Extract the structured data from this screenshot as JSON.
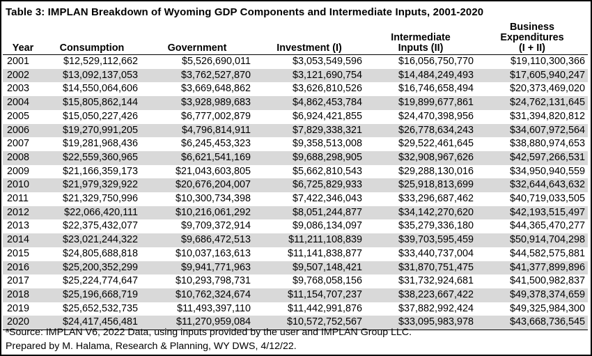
{
  "title": "Table 3:  IMPLAN Breakdown of Wyoming GDP Components and Intermediate Inputs, 2001-2020",
  "columns": {
    "year": "Year",
    "consumption": "Consumption",
    "government": "Government",
    "investment": "Investment (I)",
    "intermediate_line1": "Intermediate",
    "intermediate_line2": "Inputs (II)",
    "business_line1": "Business Expenditures",
    "business_line2": "(I + II)"
  },
  "rows": [
    {
      "year": "2001",
      "consumption": "$12,529,112,662",
      "government": "$5,526,690,011",
      "investment": "$3,053,549,596",
      "intermediate": "$16,056,750,770",
      "business": "$19,110,300,366"
    },
    {
      "year": "2002",
      "consumption": "$13,092,137,053",
      "government": "$3,762,527,870",
      "investment": "$3,121,690,754",
      "intermediate": "$14,484,249,493",
      "business": "$17,605,940,247"
    },
    {
      "year": "2003",
      "consumption": "$14,550,064,606",
      "government": "$3,669,648,862",
      "investment": "$3,626,810,526",
      "intermediate": "$16,746,658,494",
      "business": "$20,373,469,020"
    },
    {
      "year": "2004",
      "consumption": "$15,805,862,144",
      "government": "$3,928,989,683",
      "investment": "$4,862,453,784",
      "intermediate": "$19,899,677,861",
      "business": "$24,762,131,645"
    },
    {
      "year": "2005",
      "consumption": "$15,050,227,426",
      "government": "$6,777,002,879",
      "investment": "$6,924,421,855",
      "intermediate": "$24,470,398,956",
      "business": "$31,394,820,812"
    },
    {
      "year": "2006",
      "consumption": "$19,270,991,205",
      "government": "$4,796,814,911",
      "investment": "$7,829,338,321",
      "intermediate": "$26,778,634,243",
      "business": "$34,607,972,564"
    },
    {
      "year": "2007",
      "consumption": "$19,281,968,436",
      "government": "$6,245,453,323",
      "investment": "$9,358,513,008",
      "intermediate": "$29,522,461,645",
      "business": "$38,880,974,653"
    },
    {
      "year": "2008",
      "consumption": "$22,559,360,965",
      "government": "$6,621,541,169",
      "investment": "$9,688,298,905",
      "intermediate": "$32,908,967,626",
      "business": "$42,597,266,531"
    },
    {
      "year": "2009",
      "consumption": "$21,166,359,173",
      "government": "$21,043,603,805",
      "investment": "$5,662,810,543",
      "intermediate": "$29,288,130,016",
      "business": "$34,950,940,559"
    },
    {
      "year": "2010",
      "consumption": "$21,979,329,922",
      "government": "$20,676,204,007",
      "investment": "$6,725,829,933",
      "intermediate": "$25,918,813,699",
      "business": "$32,644,643,632"
    },
    {
      "year": "2011",
      "consumption": "$21,329,750,996",
      "government": "$10,300,734,398",
      "investment": "$7,422,346,043",
      "intermediate": "$33,296,687,462",
      "business": "$40,719,033,505"
    },
    {
      "year": "2012",
      "consumption": "$22,066,420,111",
      "government": "$10,216,061,292",
      "investment": "$8,051,244,877",
      "intermediate": "$34,142,270,620",
      "business": "$42,193,515,497"
    },
    {
      "year": "2013",
      "consumption": "$22,375,432,077",
      "government": "$9,709,372,914",
      "investment": "$9,086,134,097",
      "intermediate": "$35,279,336,180",
      "business": "$44,365,470,277"
    },
    {
      "year": "2014",
      "consumption": "$23,021,244,322",
      "government": "$9,686,472,513",
      "investment": "$11,211,108,839",
      "intermediate": "$39,703,595,459",
      "business": "$50,914,704,298"
    },
    {
      "year": "2015",
      "consumption": "$24,805,688,818",
      "government": "$10,037,163,613",
      "investment": "$11,141,838,877",
      "intermediate": "$33,440,737,004",
      "business": "$44,582,575,881"
    },
    {
      "year": "2016",
      "consumption": "$25,200,352,299",
      "government": "$9,941,771,963",
      "investment": "$9,507,148,421",
      "intermediate": "$31,870,751,475",
      "business": "$41,377,899,896"
    },
    {
      "year": "2017",
      "consumption": "$25,224,774,647",
      "government": "$10,293,798,731",
      "investment": "$9,768,058,156",
      "intermediate": "$31,732,924,681",
      "business": "$41,500,982,837"
    },
    {
      "year": "2018",
      "consumption": "$25,196,668,719",
      "government": "$10,762,324,674",
      "investment": "$11,154,707,237",
      "intermediate": "$38,223,667,422",
      "business": "$49,378,374,659"
    },
    {
      "year": "2019",
      "consumption": "$25,652,532,735",
      "government": "$11,493,397,110",
      "investment": "$11,442,991,876",
      "intermediate": "$37,882,992,424",
      "business": "$49,325,984,300"
    },
    {
      "year": "2020",
      "consumption": "$24,417,456,481",
      "government": "$11,270,959,084",
      "investment": "$10,572,752,567",
      "intermediate": "$33,095,983,978",
      "business": "$43,668,736,545"
    }
  ],
  "notes": {
    "source_marker": "a",
    "source": "Source: IMPLAN V6, 2022 Data, using inputs provided by the user and IMPLAN Group LLC.",
    "prepared": "Prepared by M. Halama, Research & Planning, WY DWS, 4/12/22."
  },
  "colors": {
    "stripe": "#d9d9d9",
    "border": "#000000"
  }
}
